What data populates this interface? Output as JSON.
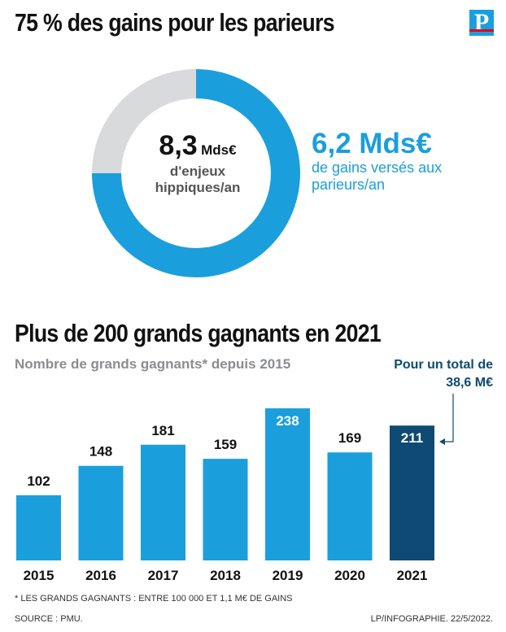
{
  "header": {
    "title1": "75 % des gains pour les parieurs",
    "logo": "P",
    "title2": "Plus de 200 grands gagnants en 2021",
    "subtitle": "Nombre de grands gagnants* depuis 2015"
  },
  "donut": {
    "total_value": "8,3",
    "total_unit": "Mds€",
    "total_label": "d'enjeux hippiques/an",
    "share_percent": 75,
    "share_value": "6,2 Mds€",
    "share_label": "de gains versés aux parieurs/an",
    "colors": {
      "share": "#1a9fdc",
      "rest": "#d9dadc"
    }
  },
  "annotation": "Pour un total de 38,6 M€",
  "chart_data": {
    "type": "bar",
    "categories": [
      "2015",
      "2016",
      "2017",
      "2018",
      "2019",
      "2020",
      "2021"
    ],
    "values": [
      102,
      148,
      181,
      159,
      238,
      169,
      211
    ],
    "ylim": [
      0,
      238
    ],
    "highlight_index": 6,
    "colors": {
      "bar": "#1a9fdc",
      "highlight": "#0e4a73"
    },
    "grid": false,
    "legend": "none"
  },
  "footer": {
    "footnote": "* LES GRANDS GAGNANTS : ENTRE 100 000 ET 1,1 M€ DE GAINS",
    "source": "SOURCE : PMU.",
    "credit": "LP/INFOGRAPHIE.  22/5/2022."
  }
}
